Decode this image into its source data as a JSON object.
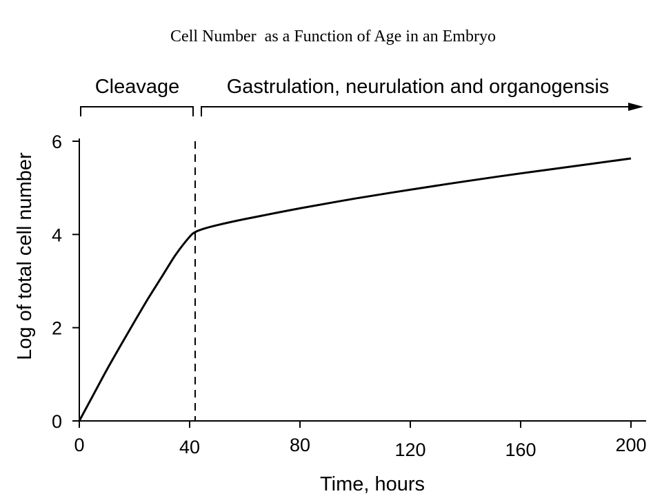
{
  "chart_data": {
    "type": "line",
    "title": "Cell Number  as a Function of Age in an Embryo",
    "xlabel": "Time, hours",
    "ylabel": "Log of total cell number",
    "xlim": [
      0,
      205
    ],
    "ylim": [
      0,
      6
    ],
    "x_ticks": [
      0,
      40,
      80,
      120,
      160,
      200
    ],
    "x_tick_labels": [
      "0",
      "40",
      "80",
      "120",
      "160",
      "200"
    ],
    "y_ticks": [
      0,
      2,
      4,
      6
    ],
    "y_tick_labels": [
      "0",
      "2",
      "4",
      "6"
    ],
    "grid": false,
    "series": [
      {
        "x": [
          0,
          5,
          10,
          15,
          20,
          25,
          30,
          35,
          40,
          42,
          45,
          50,
          60,
          80,
          100,
          120,
          140,
          160,
          180,
          200
        ],
        "y": [
          0,
          0.55,
          1.1,
          1.62,
          2.13,
          2.63,
          3.1,
          3.57,
          3.95,
          4.05,
          4.12,
          4.2,
          4.33,
          4.56,
          4.77,
          4.96,
          5.14,
          5.31,
          5.47,
          5.63
        ]
      }
    ],
    "phase_divider_x": 42,
    "annotations": {
      "cleavage": {
        "label": "Cleavage",
        "x_start": 0,
        "x_end": 41
      },
      "later": {
        "label": "Gastrulation, neurulation and organogensis",
        "x_start": 44,
        "x_end": 203
      }
    }
  }
}
